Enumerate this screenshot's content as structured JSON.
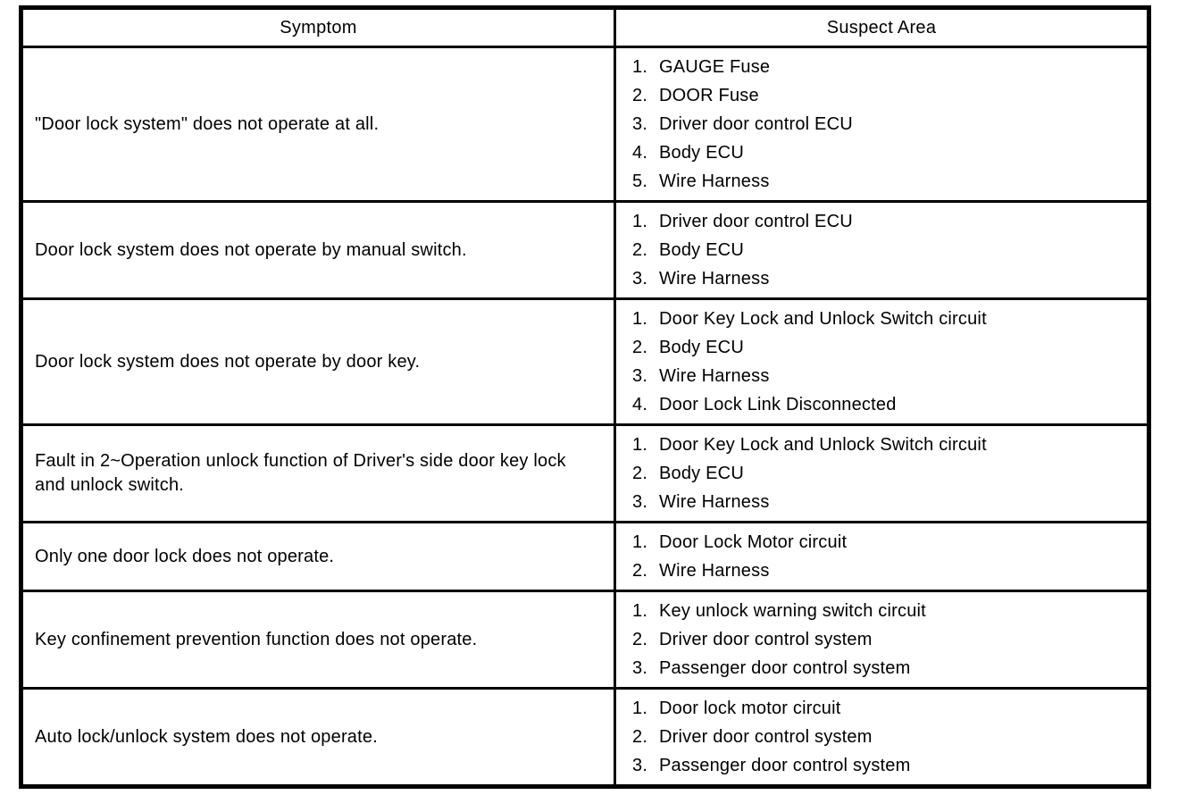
{
  "table": {
    "columns": [
      "Symptom",
      "Suspect Area"
    ],
    "rows": [
      {
        "symptom": "\"Door lock system\" does not operate at all.",
        "suspects": [
          "GAUGE Fuse",
          "DOOR Fuse",
          "Driver door control ECU",
          "Body ECU",
          "Wire Harness"
        ]
      },
      {
        "symptom": "Door lock system does not operate by manual switch.",
        "suspects": [
          "Driver door control ECU",
          "Body ECU",
          "Wire Harness"
        ]
      },
      {
        "symptom": "Door lock system does not operate by door key.",
        "suspects": [
          "Door Key Lock and Unlock Switch circuit",
          "Body ECU",
          "Wire Harness",
          "Door Lock Link Disconnected"
        ]
      },
      {
        "symptom": "Fault in 2~Operation unlock function of Driver's side door key lock and unlock switch.",
        "suspects": [
          "Door Key Lock and Unlock Switch circuit",
          "Body ECU",
          "Wire Harness"
        ]
      },
      {
        "symptom": "Only one door lock does not operate.",
        "suspects": [
          "Door Lock Motor circuit",
          "Wire Harness"
        ]
      },
      {
        "symptom": "Key confinement prevention function does not operate.",
        "suspects": [
          "Key unlock warning switch circuit",
          "Driver door control system",
          "Passenger door control system"
        ]
      },
      {
        "symptom": "Auto lock/unlock system does not operate.",
        "suspects": [
          "Door lock motor circuit",
          "Driver door control system",
          "Passenger door control system"
        ]
      }
    ]
  }
}
